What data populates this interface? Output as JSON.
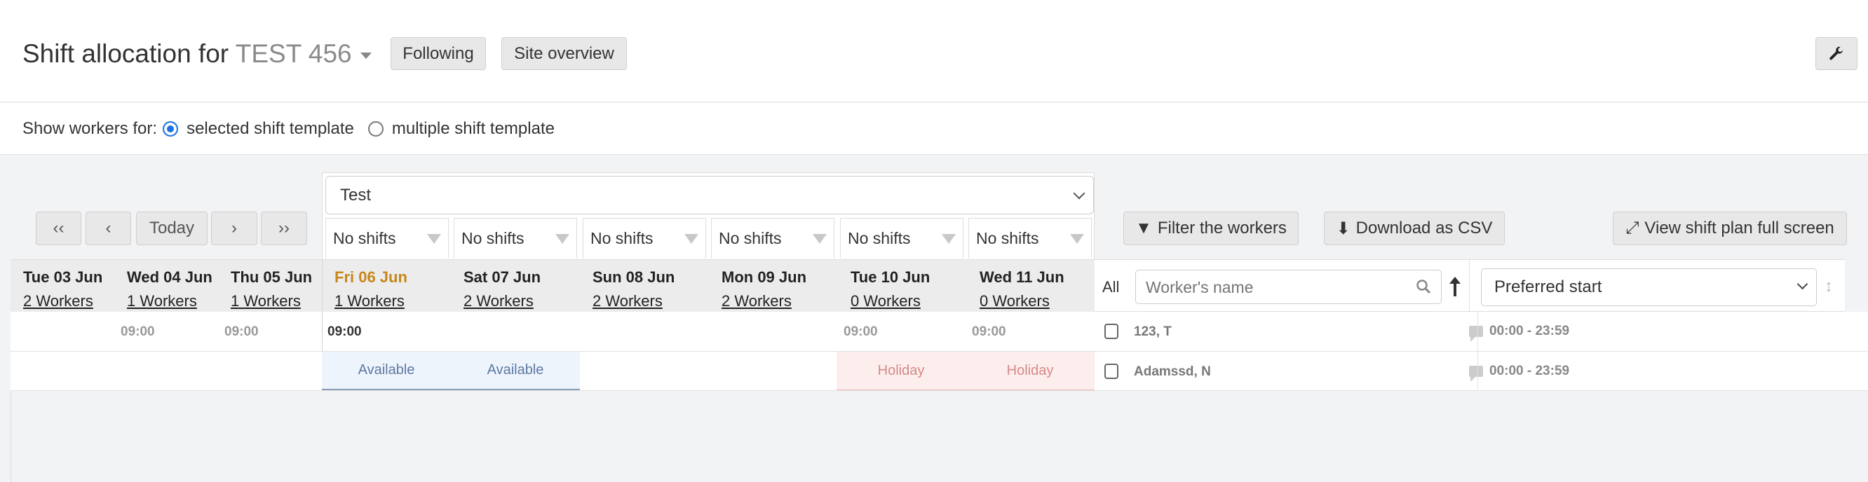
{
  "header": {
    "title": "Shift allocation for",
    "site": "TEST 456",
    "following": "Following",
    "site_overview": "Site overview",
    "settings_icon": "wrench-icon"
  },
  "show_workers": {
    "label": "Show workers for:",
    "options": [
      {
        "label": "selected shift template",
        "selected": true
      },
      {
        "label": "multiple shift template",
        "selected": false
      }
    ]
  },
  "nav": {
    "first": "‹‹",
    "prev": "‹",
    "today": "Today",
    "next": "›",
    "last": "››"
  },
  "template": {
    "selected": "Test"
  },
  "shift_selects": [
    "No shifts",
    "No shifts",
    "No shifts",
    "No shifts",
    "No shifts",
    "No shifts"
  ],
  "days": [
    {
      "label": "Tue 03 Jun",
      "workers": "2 Workers",
      "time": ""
    },
    {
      "label": "Wed 04 Jun",
      "workers": "1 Workers",
      "time": "09:00"
    },
    {
      "label": "Thu 05 Jun",
      "workers": "1 Workers",
      "time": "09:00"
    },
    {
      "label": "Fri 06 Jun",
      "workers": "1 Workers",
      "time": "09:00",
      "today": true
    },
    {
      "label": "Sat 07 Jun",
      "workers": "2 Workers",
      "time": ""
    },
    {
      "label": "Sun 08 Jun",
      "workers": "2 Workers",
      "time": ""
    },
    {
      "label": "Mon 09 Jun",
      "workers": "2 Workers",
      "time": ""
    },
    {
      "label": "Tue 10 Jun",
      "workers": "0 Workers",
      "time": "09:00"
    },
    {
      "label": "Wed 11 Jun",
      "workers": "0 Workers",
      "time": "09:00"
    }
  ],
  "row2": {
    "fri": "Available",
    "sat": "Available",
    "tue": "Holiday",
    "wed": "Holiday"
  },
  "toolbar": {
    "filter": "Filter the workers",
    "download": "Download as CSV",
    "fullscreen": "View shift plan full screen"
  },
  "workers_panel": {
    "all": "All",
    "search_placeholder": "Worker's name",
    "sort_select": "Preferred start"
  },
  "workers": [
    {
      "name": "123, T",
      "time": "00:00 - 23:59"
    },
    {
      "name": "Adamssd, N",
      "time": "00:00 - 23:59"
    }
  ],
  "colors": {
    "today": "#c8871a",
    "available_bg": "#eef4fc",
    "holiday_bg": "#fdeeee",
    "radio": "#1a73e8"
  }
}
